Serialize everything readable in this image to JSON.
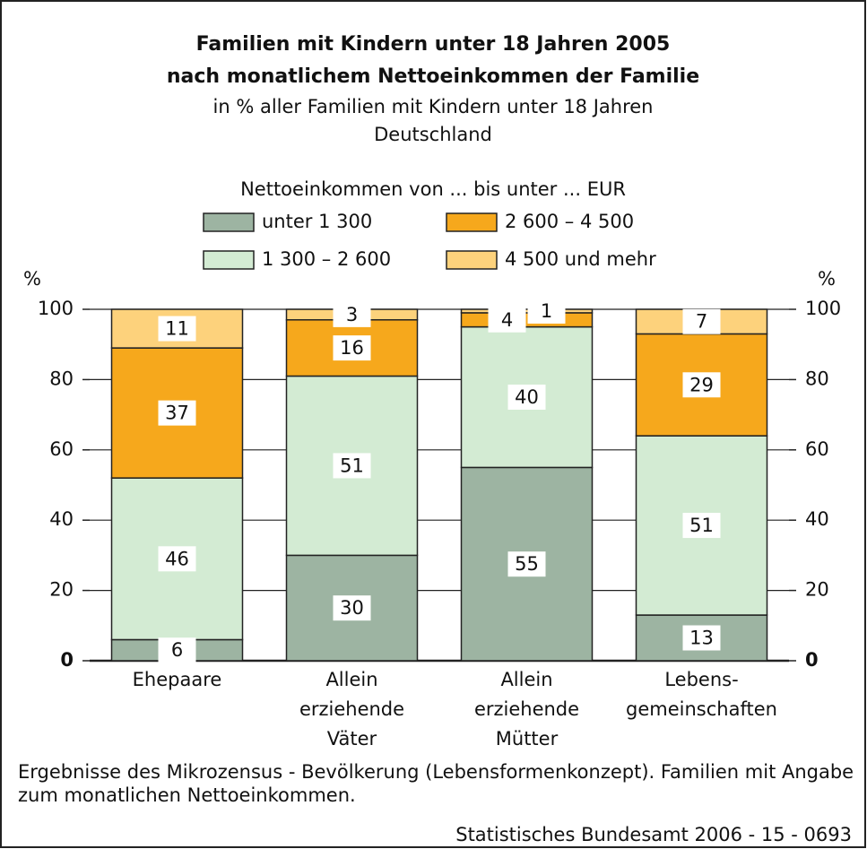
{
  "chart_data": {
    "type": "stacked_bar",
    "title": [
      "Familien mit Kindern unter 18 Jahren 2005",
      "nach monatlichem Nettoeinkommen der Familie"
    ],
    "subtitle": [
      "in % aller Familien mit Kindern unter 18 Jahren",
      "Deutschland"
    ],
    "legend_title": "Nettoeinkommen von ... bis unter ... EUR",
    "ylabel": "%",
    "y2label": "%",
    "categories": [
      [
        "Ehepaare"
      ],
      [
        "Allein",
        "erziehende",
        "Väter"
      ],
      [
        "Allein",
        "erziehende",
        "Mütter"
      ],
      [
        "Lebens-",
        "gemeinschaften"
      ]
    ],
    "series": [
      {
        "name": "unter 1 300",
        "color": "#9db4a2",
        "values": [
          6,
          30,
          55,
          13
        ]
      },
      {
        "name": "1 300 – 2 600",
        "color": "#d3ebd3",
        "values": [
          46,
          51,
          40,
          51
        ]
      },
      {
        "name": "2 600 – 4 500",
        "color": "#f6a81c",
        "values": [
          37,
          16,
          4,
          29
        ]
      },
      {
        "name": "4 500 und mehr",
        "color": "#fdd27c",
        "values": [
          11,
          3,
          1,
          7
        ]
      }
    ],
    "ylim": [
      0,
      100
    ],
    "yticks": [
      0,
      20,
      40,
      60,
      80,
      100
    ],
    "grid": true,
    "footnote": [
      "Ergebnisse des Mikrozensus - Bevölkerung (Lebensformenkonzept). Familien mit Angabe",
      "zum monatlichen Nettoeinkommen."
    ],
    "source": "Statistisches Bundesamt 2006 - 15 - 0693"
  }
}
